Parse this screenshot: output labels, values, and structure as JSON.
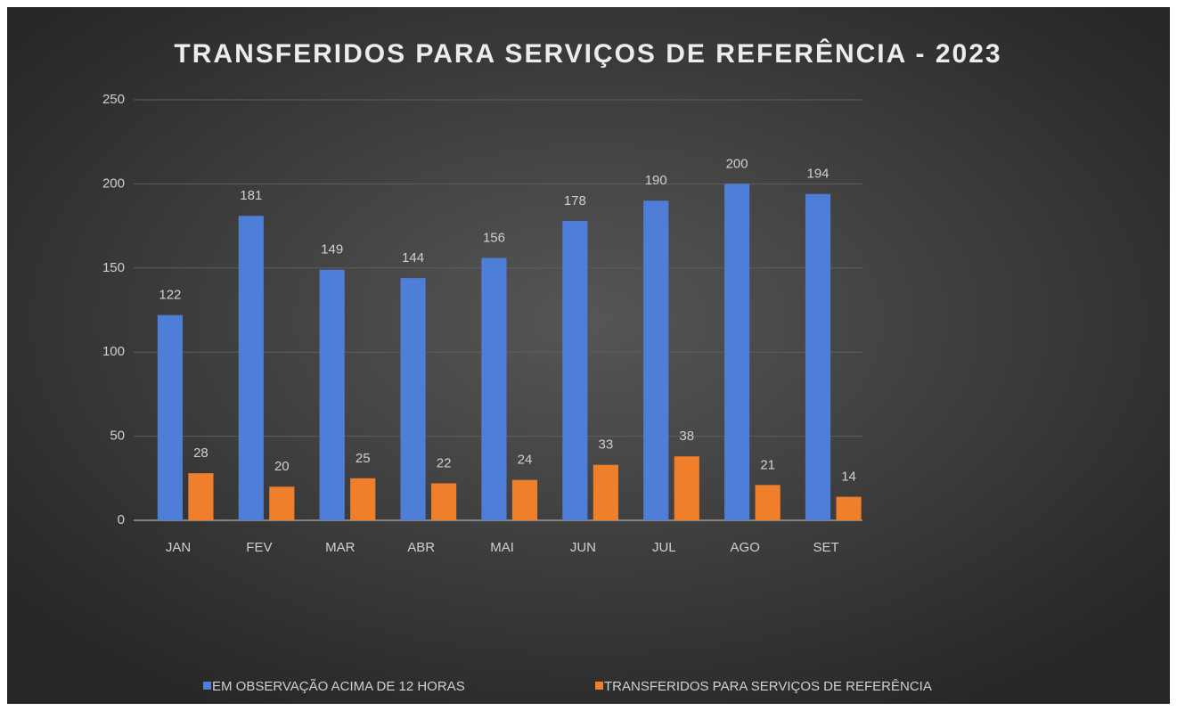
{
  "chart_data": {
    "type": "bar",
    "title": "TRANSFERIDOS PARA SERVIÇOS DE REFERÊNCIA - 2023",
    "categories": [
      "JAN",
      "FEV",
      "MAR",
      "ABR",
      "MAI",
      "JUN",
      "JUL",
      "AGO",
      "SET"
    ],
    "series": [
      {
        "name": "EM OBSERVAÇÃO ACIMA DE 12 HORAS",
        "color": "#4f7ed8",
        "values": [
          122,
          181,
          149,
          144,
          156,
          178,
          190,
          200,
          194
        ]
      },
      {
        "name": "TRANSFERIDOS PARA SERVIÇOS DE REFERÊNCIA",
        "color": "#f07f2c",
        "values": [
          28,
          20,
          25,
          22,
          24,
          33,
          38,
          21,
          14
        ]
      }
    ],
    "ylim": [
      0,
      250
    ],
    "yticks": [
      0,
      50,
      100,
      150,
      200,
      250
    ],
    "grid": true,
    "legend": "bottom"
  }
}
